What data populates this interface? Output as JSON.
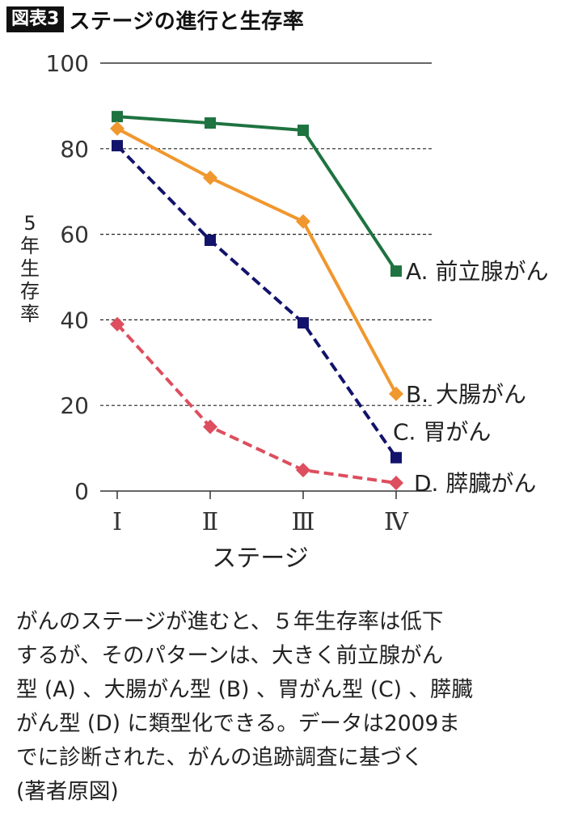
{
  "figure": {
    "badge": "図表3",
    "title": "ステージの進行と生存率"
  },
  "chart_data": {
    "type": "line",
    "title": "ステージの進行と生存率",
    "xlabel": "ステージ",
    "ylabel": "5年生存率",
    "ylabel_chars": [
      "5",
      "年",
      "生",
      "存",
      "率"
    ],
    "categories": [
      "Ⅰ",
      "Ⅱ",
      "Ⅲ",
      "Ⅳ"
    ],
    "ylim": [
      0,
      100
    ],
    "yticks": [
      0,
      20,
      40,
      60,
      80,
      100
    ],
    "grid": "horizontal dashed at 20, 40, 60, 80; solid at 100",
    "legend": "inline labels at right end of each series",
    "series": [
      {
        "name": "A. 前立腺がん",
        "values": [
          87.5,
          86,
          84.3,
          51.4
        ],
        "color": "#1e7340",
        "marker": "square",
        "line": "solid"
      },
      {
        "name": "B. 大腸がん",
        "values": [
          84.7,
          73.2,
          63,
          22.7
        ],
        "color": "#f0972e",
        "marker": "diamond",
        "line": "solid"
      },
      {
        "name": "C. 胃がん",
        "values": [
          80.7,
          58.6,
          39.3,
          7.8
        ],
        "color": "#12136b",
        "marker": "square",
        "line": "dashed"
      },
      {
        "name": "D. 膵臓がん",
        "values": [
          39,
          15,
          4.9,
          1.9
        ],
        "color": "#dd4e5e",
        "marker": "diamond",
        "line": "dashed"
      }
    ]
  },
  "caption": {
    "lines": [
      "がんのステージが進むと、５年生存率は低下",
      "するが、そのパターンは、大きく前立腺がん",
      "型 (A) 、大腸がん型 (B) 、胃がん型 (C) 、膵臓",
      "がん型 (D) に類型化できる。データは2009ま",
      "でに診断された、がんの追跡調査に基づく",
      "(著者原図)"
    ]
  }
}
